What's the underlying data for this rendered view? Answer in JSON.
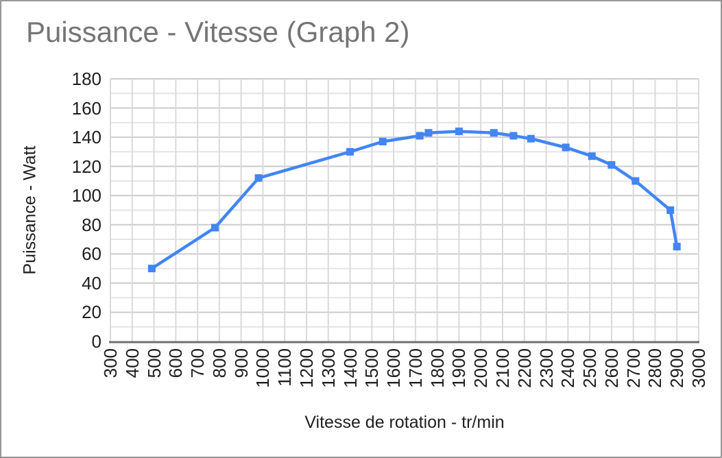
{
  "window": {
    "background": "#ffffff",
    "border_color": "#979797"
  },
  "chart": {
    "title": "Puissance - Vitesse (Graph 2)",
    "title_color": "#757575",
    "x_axis_title": "Vitesse de rotation - tr/min",
    "y_axis_title": "Puissance - Watt",
    "axis_label_color": "#1f1f1f",
    "series_color": "#4285f4",
    "major_gridline_color": "#cccccc",
    "minor_gridline_color": "#e4e4e4",
    "vertical_gridline_color": "#dadada",
    "axis_line_color": "#6f6f6f"
  },
  "chart_data": {
    "type": "line",
    "title": "Puissance - Vitesse (Graph 2)",
    "xlabel": "Vitesse de rotation - tr/min",
    "ylabel": "Puissance - Watt",
    "xlim": [
      300,
      3000
    ],
    "ylim": [
      0,
      180
    ],
    "x_tick_step": 100,
    "y_tick_step": 20,
    "y_minor_gridline_step": 10,
    "grid": true,
    "legend": false,
    "marker": "square",
    "series": [
      {
        "name": "Puissance",
        "points": [
          [
            490,
            50
          ],
          [
            780,
            78
          ],
          [
            980,
            112
          ],
          [
            1400,
            130
          ],
          [
            1550,
            137
          ],
          [
            1720,
            141
          ],
          [
            1760,
            143
          ],
          [
            1900,
            144
          ],
          [
            2060,
            143
          ],
          [
            2150,
            141
          ],
          [
            2230,
            139
          ],
          [
            2390,
            133
          ],
          [
            2510,
            127
          ],
          [
            2600,
            121
          ],
          [
            2710,
            110
          ],
          [
            2870,
            90
          ],
          [
            2900,
            65
          ]
        ]
      }
    ]
  }
}
